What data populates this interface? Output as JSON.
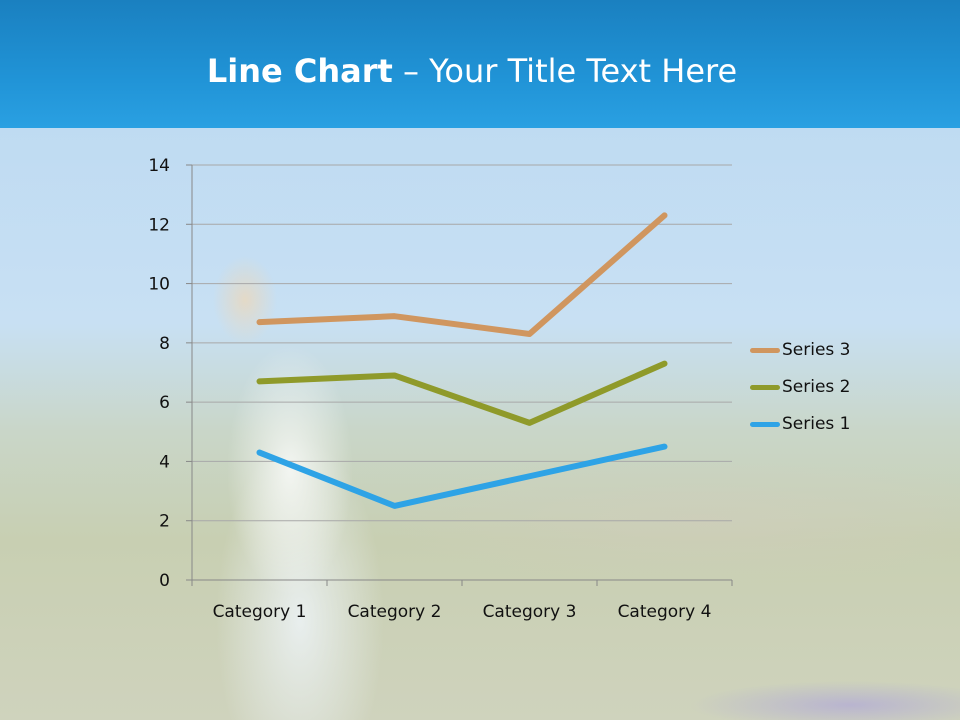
{
  "slide": {
    "title_bold": "Line Chart",
    "title_rest": " – Your Title Text Here"
  },
  "chart_data": {
    "type": "line",
    "title": "",
    "categories": [
      "Category 1",
      "Category 2",
      "Category 3",
      "Category 4"
    ],
    "series": [
      {
        "name": "Series 1",
        "values": [
          4.3,
          2.5,
          3.5,
          4.5
        ],
        "color": "#2ea3e6"
      },
      {
        "name": "Series 2",
        "values": [
          6.7,
          6.9,
          5.3,
          7.3
        ],
        "color": "#8f9a2a"
      },
      {
        "name": "Series 3",
        "values": [
          8.7,
          8.9,
          8.3,
          12.3
        ],
        "color": "#d0965f"
      }
    ],
    "ylim": [
      0,
      14
    ],
    "yticks": [
      "0",
      "2",
      "4",
      "6",
      "8",
      "10",
      "12",
      "14"
    ],
    "grid": true,
    "legend": "right"
  }
}
